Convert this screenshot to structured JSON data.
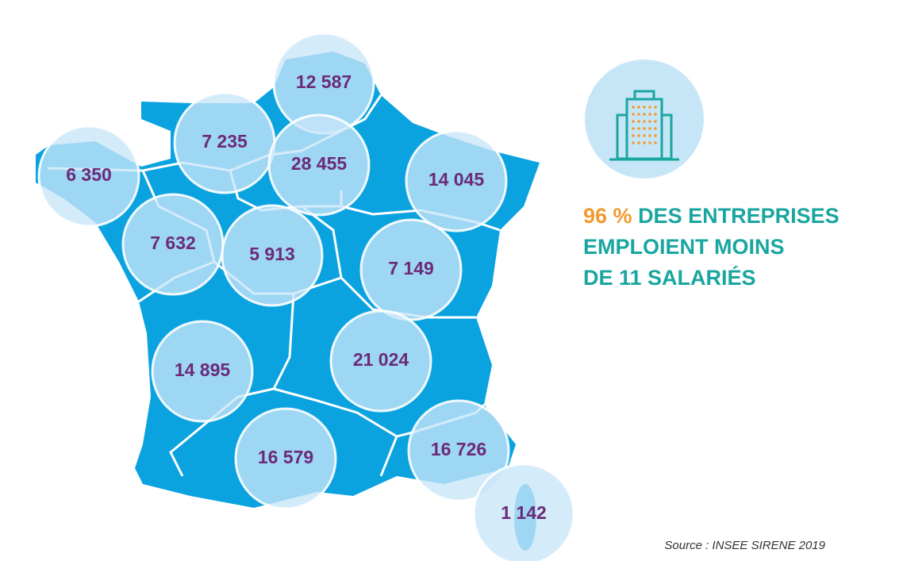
{
  "map": {
    "regions": [
      {
        "label": "12 587"
      },
      {
        "label": "7 235"
      },
      {
        "label": "28 455"
      },
      {
        "label": "6 350"
      },
      {
        "label": "14 045"
      },
      {
        "label": "7 632"
      },
      {
        "label": "5 913"
      },
      {
        "label": "7 149"
      },
      {
        "label": "14 895"
      },
      {
        "label": "21 024"
      },
      {
        "label": "16 579"
      },
      {
        "label": "16 726"
      },
      {
        "label": "1 142"
      }
    ]
  },
  "headline": {
    "highlight": "96 %",
    "line1": "DES ENTREPRISES",
    "line2": "EMPLOIENT MOINS",
    "line3": "DE 11 SALARIÉS"
  },
  "source": "Source : INSEE SIRENE 2019"
}
